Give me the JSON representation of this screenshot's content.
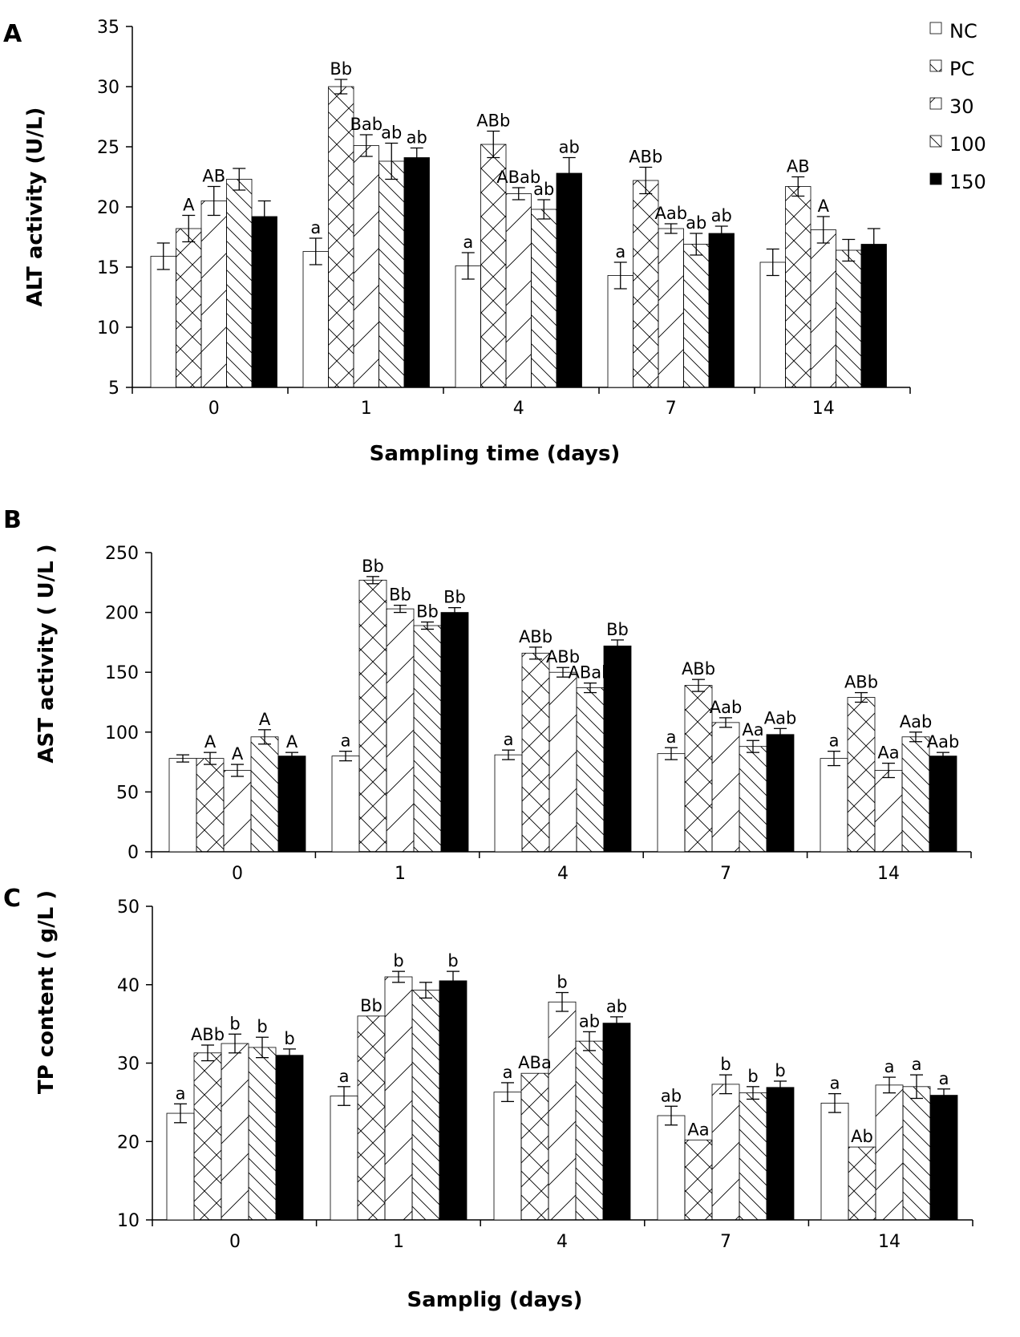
{
  "legend": {
    "entries": [
      "NC",
      "PC",
      "30",
      "100",
      "150"
    ],
    "patterns": [
      "blank",
      "crosshatch",
      "diag-up",
      "diag-down",
      "solid"
    ]
  },
  "chart_data": [
    {
      "type": "bar",
      "panel": "A",
      "title": "",
      "xlabel": "Sampling time (days)",
      "ylabel": "ALT  activity (U/L)",
      "categories": [
        "0",
        "1",
        "4",
        "7",
        "14"
      ],
      "ylim": [
        5,
        35
      ],
      "yticks": [
        5,
        10,
        15,
        20,
        25,
        30,
        35
      ],
      "series": [
        {
          "name": "NC",
          "values": [
            15.9,
            16.3,
            15.1,
            14.3,
            15.4
          ],
          "errors": [
            1.1,
            1.1,
            1.1,
            1.1,
            1.1
          ],
          "labels": [
            "",
            "a",
            "a",
            "a",
            ""
          ]
        },
        {
          "name": "PC",
          "values": [
            18.2,
            30.0,
            25.2,
            22.2,
            21.7
          ],
          "errors": [
            1.1,
            0.6,
            1.1,
            1.1,
            0.8
          ],
          "labels": [
            "A",
            "Bb",
            "ABb",
            "ABb",
            "AB"
          ]
        },
        {
          "name": "30",
          "values": [
            20.5,
            25.1,
            21.1,
            18.2,
            18.1
          ],
          "errors": [
            1.2,
            0.9,
            0.5,
            0.4,
            1.1
          ],
          "labels": [
            "AB",
            "Bab",
            "ABab",
            "Aab",
            "A"
          ]
        },
        {
          "name": "100",
          "values": [
            22.3,
            23.8,
            19.8,
            16.9,
            16.4
          ],
          "errors": [
            0.9,
            1.5,
            0.8,
            0.9,
            0.9
          ],
          "labels": [
            "",
            "ab",
            "ab",
            "ab",
            ""
          ]
        },
        {
          "name": "150",
          "values": [
            19.2,
            24.1,
            22.8,
            17.8,
            16.9
          ],
          "errors": [
            1.3,
            0.8,
            1.3,
            0.6,
            1.3
          ],
          "labels": [
            "",
            "ab",
            "ab",
            "ab",
            ""
          ]
        }
      ]
    },
    {
      "type": "bar",
      "panel": "B",
      "title": "",
      "xlabel": "",
      "ylabel": "AST activity ( U/L )",
      "categories": [
        "0",
        "1",
        "4",
        "7",
        "14"
      ],
      "ylim": [
        0,
        250
      ],
      "yticks": [
        0,
        50,
        100,
        150,
        200,
        250
      ],
      "series": [
        {
          "name": "NC",
          "values": [
            78,
            80,
            81,
            82,
            78
          ],
          "errors": [
            3,
            4,
            4,
            5,
            6
          ],
          "labels": [
            "",
            "a",
            "a",
            "a",
            "a"
          ]
        },
        {
          "name": "PC",
          "values": [
            78,
            227,
            166,
            139,
            129
          ],
          "errors": [
            5,
            3,
            5,
            5,
            4
          ],
          "labels": [
            "A",
            "Bb",
            "ABb",
            "ABb",
            "ABb"
          ]
        },
        {
          "name": "30",
          "values": [
            68,
            203,
            150,
            108,
            68
          ],
          "errors": [
            5,
            3,
            4,
            4,
            6
          ],
          "labels": [
            "A",
            "Bb",
            "ABb",
            "Aab",
            "Aa"
          ]
        },
        {
          "name": "100",
          "values": [
            96,
            189,
            137,
            88,
            96
          ],
          "errors": [
            6,
            3,
            4,
            5,
            4
          ],
          "labels": [
            "A",
            "Bb",
            "ABab",
            "Aa",
            "Aab"
          ]
        },
        {
          "name": "150",
          "values": [
            80,
            200,
            172,
            98,
            80
          ],
          "errors": [
            3,
            4,
            5,
            5,
            3
          ],
          "labels": [
            "A",
            "Bb",
            "Bb",
            "Aab",
            "Aab"
          ]
        }
      ]
    },
    {
      "type": "bar",
      "panel": "C",
      "title": "",
      "xlabel": "Samplig (days)",
      "ylabel": "TP content  ( g/L )",
      "categories": [
        "0",
        "1",
        "4",
        "7",
        "14"
      ],
      "ylim": [
        10,
        50
      ],
      "yticks": [
        10,
        20,
        30,
        40,
        50
      ],
      "series": [
        {
          "name": "NC",
          "values": [
            23.6,
            25.8,
            26.3,
            23.3,
            24.9
          ],
          "errors": [
            1.2,
            1.2,
            1.2,
            1.2,
            1.2
          ],
          "labels": [
            "a",
            "a",
            "a",
            "ab",
            "a"
          ]
        },
        {
          "name": "PC",
          "values": [
            31.3,
            36.0,
            28.7,
            20.2,
            19.3
          ],
          "errors": [
            1.0,
            0,
            0,
            0,
            0
          ],
          "labels": [
            "ABb",
            "Bb",
            "ABa",
            "Aa",
            "Ab"
          ]
        },
        {
          "name": "30",
          "values": [
            32.5,
            41.0,
            37.8,
            27.3,
            27.2
          ],
          "errors": [
            1.2,
            0.7,
            1.2,
            1.2,
            1.0
          ],
          "labels": [
            "b",
            "b",
            "b",
            "b",
            "a"
          ]
        },
        {
          "name": "100",
          "values": [
            32.0,
            39.3,
            32.8,
            26.2,
            27.0
          ],
          "errors": [
            1.3,
            1.0,
            1.2,
            0.8,
            1.5
          ],
          "labels": [
            "b",
            "",
            "ab",
            "b",
            "a"
          ]
        },
        {
          "name": "150",
          "values": [
            31.0,
            40.5,
            35.1,
            26.9,
            25.9
          ],
          "errors": [
            0.8,
            1.2,
            0.8,
            0.8,
            0.8
          ],
          "labels": [
            "b",
            "b",
            "ab",
            "b",
            "a"
          ]
        }
      ]
    }
  ]
}
